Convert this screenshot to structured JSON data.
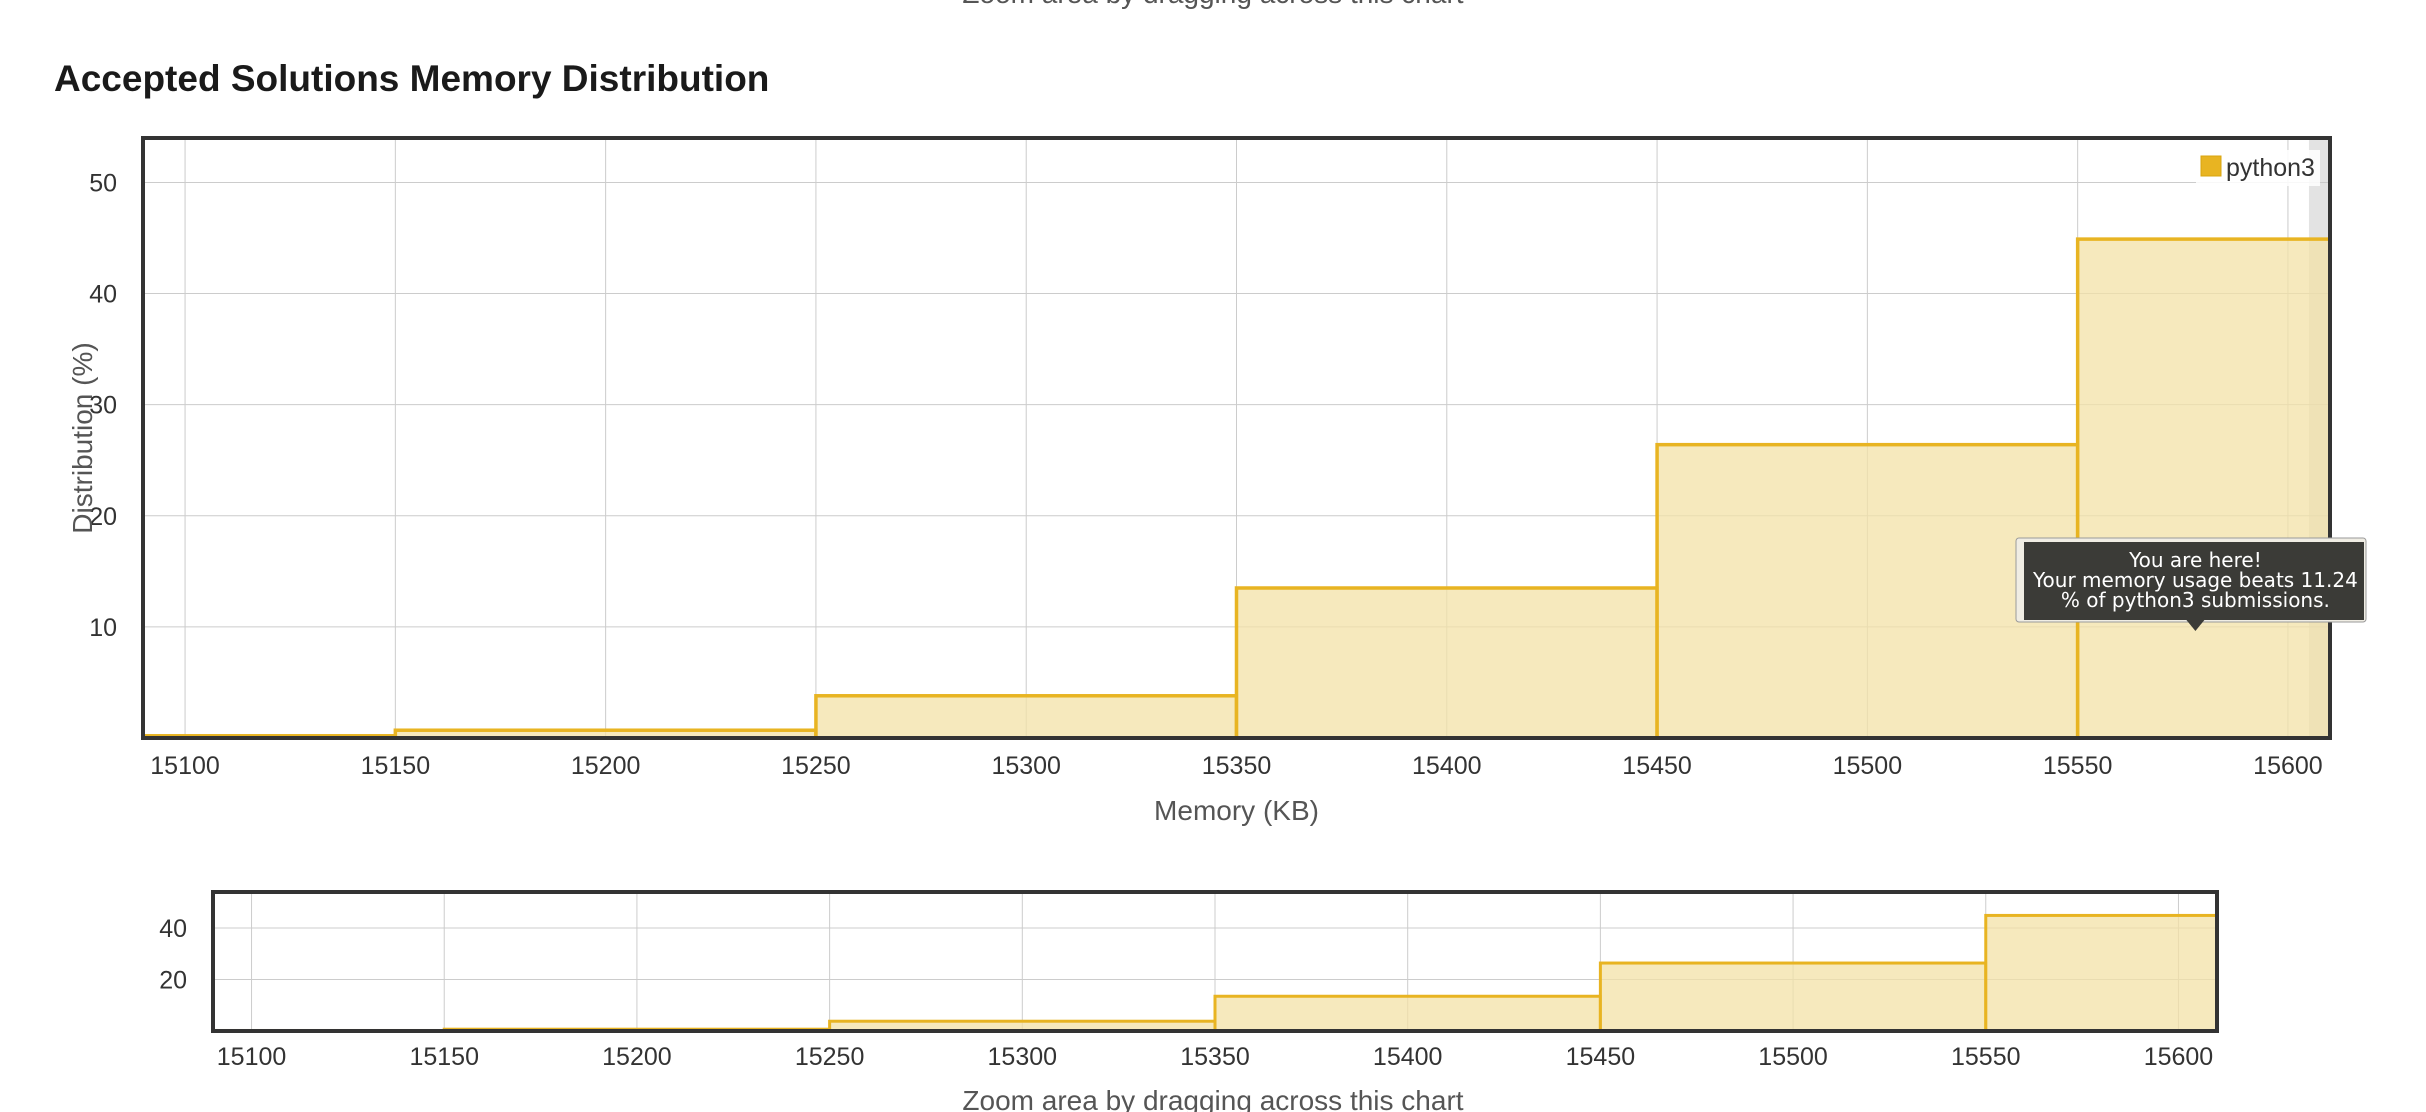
{
  "page": {
    "top_caption": "Zoom area by dragging across this chart",
    "section_title": "Accepted Solutions Memory Distribution"
  },
  "colors": {
    "bar_fill": "#f3e1a7",
    "bar_stroke": "#e8b422",
    "grid": "#cccccc",
    "frame": "#333333",
    "tooltip_bg": "#3b3b37"
  },
  "chart_data": [
    {
      "id": "main",
      "type": "bar",
      "title": "Accepted Solutions Memory Distribution",
      "xlabel": "Memory (KB)",
      "ylabel": "Distribution (%)",
      "xlim": [
        15090,
        15610
      ],
      "ylim": [
        0,
        54
      ],
      "x_ticks": [
        15100,
        15150,
        15200,
        15250,
        15300,
        15350,
        15400,
        15450,
        15500,
        15550,
        15600
      ],
      "y_ticks": [
        10,
        20,
        30,
        40,
        50
      ],
      "bin_edges": [
        15090,
        15150,
        15250,
        15350,
        15450,
        15550,
        15610
      ],
      "series": [
        {
          "name": "python3",
          "values": [
            0.2,
            0.7,
            3.8,
            13.5,
            26.4,
            44.9
          ]
        }
      ],
      "legend": {
        "position": "top-right",
        "entries": [
          "python3"
        ]
      },
      "grid": true,
      "highlight": {
        "x_from": 15605,
        "x_to": 15610
      },
      "annotation": {
        "lines": [
          "You are here!",
          "Your memory usage beats 11.24",
          "% of python3 submissions."
        ],
        "x": 15578
      }
    },
    {
      "id": "navigator",
      "type": "bar",
      "xlabel": "Zoom area by dragging across this chart",
      "xlim": [
        15090,
        15610
      ],
      "ylim": [
        0,
        54
      ],
      "x_ticks": [
        15100,
        15150,
        15200,
        15250,
        15300,
        15350,
        15400,
        15450,
        15500,
        15550,
        15600
      ],
      "y_ticks": [
        20,
        40
      ],
      "bin_edges": [
        15090,
        15150,
        15250,
        15350,
        15450,
        15550,
        15610
      ],
      "series": [
        {
          "values": [
            0.2,
            0.7,
            3.8,
            13.5,
            26.4,
            44.9
          ]
        }
      ],
      "grid": true
    }
  ]
}
